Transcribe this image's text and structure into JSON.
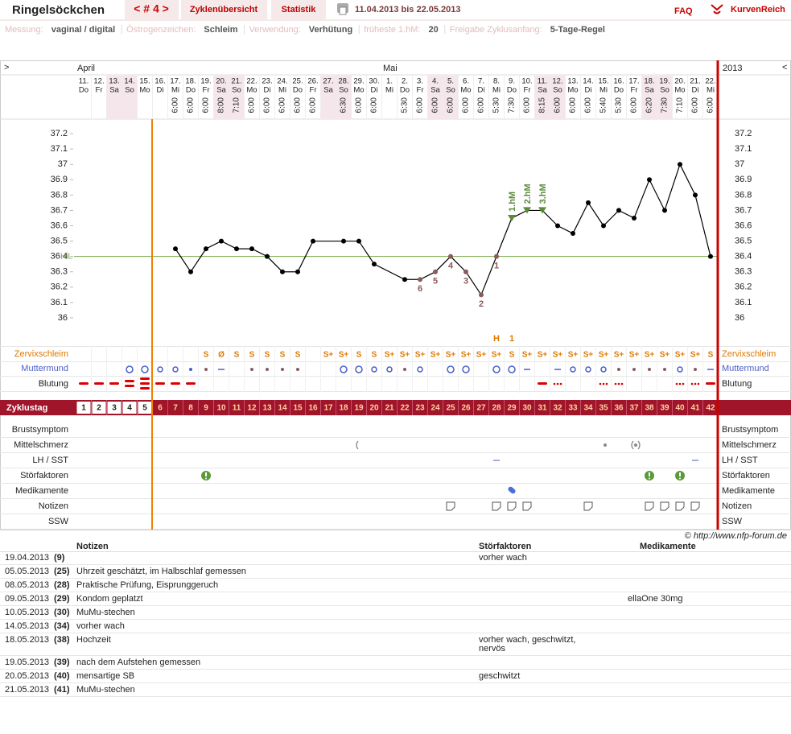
{
  "header": {
    "title": "Ringelsöckchen",
    "cycle_nav": "< # 4 >",
    "tabs": [
      "Zyklenübersicht",
      "Statistik"
    ],
    "date_range": "11.04.2013 bis 22.05.2013",
    "faq": "FAQ",
    "brand": "KurvenReich"
  },
  "settings": [
    {
      "label": "Messung:",
      "value": "vaginal / digital"
    },
    {
      "label": "Östrogenzeichen:",
      "value": "Schleim"
    },
    {
      "label": "Verwendung:",
      "value": "Verhütung"
    },
    {
      "label": "früheste 1.hM:",
      "value": "20"
    },
    {
      "label": "Freigabe Zyklusanfang:",
      "value": "5-Tage-Regel"
    }
  ],
  "calendar": {
    "nav_left": ">",
    "nav_right": "<",
    "year": "2013",
    "months": [
      "April",
      "Mai"
    ],
    "dates": [
      "11.",
      "12.",
      "13.",
      "14.",
      "15.",
      "16.",
      "17.",
      "18.",
      "19.",
      "20.",
      "21.",
      "22.",
      "23.",
      "24.",
      "25.",
      "26.",
      "27.",
      "28.",
      "29.",
      "30.",
      "1.",
      "2.",
      "3.",
      "4.",
      "5.",
      "6.",
      "7.",
      "8.",
      "9.",
      "10.",
      "11.",
      "12.",
      "13.",
      "14.",
      "15.",
      "16.",
      "17.",
      "18.",
      "19.",
      "20.",
      "21.",
      "22."
    ],
    "weekdays": [
      "Do",
      "Fr",
      "Sa",
      "So",
      "Mo",
      "Di",
      "Mi",
      "Do",
      "Fr",
      "Sa",
      "So",
      "Mo",
      "Di",
      "Mi",
      "Do",
      "Fr",
      "Sa",
      "So",
      "Mo",
      "Di",
      "Mi",
      "Do",
      "Fr",
      "Sa",
      "So",
      "Mo",
      "Di",
      "Mi",
      "Do",
      "Fr",
      "Sa",
      "So",
      "Mo",
      "Di",
      "Mi",
      "Do",
      "Fr",
      "Sa",
      "So",
      "Mo",
      "Di",
      "Mi"
    ],
    "times": [
      null,
      null,
      null,
      null,
      null,
      null,
      "6:00",
      "6:00",
      "6:00",
      "8:00",
      "7:10",
      "6:00",
      "6:00",
      "6:00",
      "6:00",
      "6:00",
      null,
      "6:30",
      "6:00",
      "6:00",
      null,
      "5:30",
      "6:00",
      "6:00",
      "6:00",
      "6:00",
      "6:00",
      "5:30",
      "7:30",
      "6:00",
      "8:15",
      "6:00",
      "6:00",
      "6:00",
      "5:40",
      "5:30",
      "6:00",
      "6:20",
      "7:30",
      "7:10",
      "6:00",
      "6:00"
    ]
  },
  "chart_data": {
    "type": "line",
    "color": "#000000",
    "x": [
      7,
      8,
      9,
      10,
      11,
      12,
      13,
      14,
      15,
      16,
      18,
      19,
      20,
      22,
      23,
      24,
      25,
      26,
      27,
      28,
      29,
      30,
      31,
      32,
      33,
      34,
      35,
      36,
      37,
      38,
      39,
      40,
      41,
      42
    ],
    "values": [
      36.45,
      36.3,
      36.45,
      36.5,
      36.45,
      36.45,
      36.4,
      36.3,
      36.3,
      36.5,
      36.5,
      36.5,
      36.35,
      36.25,
      36.25,
      36.3,
      36.4,
      36.3,
      36.15,
      36.4,
      36.65,
      36.7,
      36.7,
      36.6,
      36.55,
      36.75,
      36.6,
      36.7,
      36.65,
      36.9,
      36.7,
      37.0,
      36.8,
      36.4
    ],
    "xlim": [
      1,
      42
    ],
    "ylim": [
      35.9,
      37.3
    ],
    "yticks": [
      36,
      36.1,
      36.2,
      36.3,
      36.4,
      36.5,
      36.6,
      36.7,
      36.8,
      36.9,
      37,
      37.1,
      37.2
    ],
    "coverline": {
      "label": "HiL",
      "value": 36.4
    },
    "low_marks": [
      {
        "x": 23,
        "label": "6"
      },
      {
        "x": 24,
        "label": "5"
      },
      {
        "x": 25,
        "label": "4"
      },
      {
        "x": 26,
        "label": "3"
      },
      {
        "x": 27,
        "label": "2"
      },
      {
        "x": 28,
        "label": "1"
      }
    ],
    "high_marks": [
      {
        "x": 29,
        "label": "1.hM"
      },
      {
        "x": 30,
        "label": "2.hM"
      },
      {
        "x": 31,
        "label": "3.hM"
      }
    ],
    "peak_marks": [
      {
        "x": 28,
        "label": "H"
      },
      {
        "x": 29,
        "label": "1"
      }
    ]
  },
  "rows": {
    "cervix": {
      "label": "Zervixschleim",
      "values": [
        null,
        null,
        null,
        null,
        null,
        null,
        null,
        null,
        "S",
        "Ø",
        "S",
        "S",
        "S",
        "S",
        "S",
        null,
        "S+",
        "S+",
        "S",
        "S",
        "S+",
        "S+",
        "S+",
        "S+",
        "S+",
        "S+",
        "S+",
        "S+",
        "S",
        "S+",
        "S+",
        "S+",
        "S+",
        "S+",
        "S+",
        "S+",
        "S+",
        "S+",
        "S+",
        "S+",
        "S+",
        "S"
      ]
    },
    "muttermund": {
      "label": "Muttermund"
    },
    "blutung": {
      "label": "Blutung"
    }
  },
  "cycle_days": {
    "label": "Zyklustag",
    "values": [
      1,
      2,
      3,
      4,
      5,
      6,
      7,
      8,
      9,
      10,
      11,
      12,
      13,
      14,
      15,
      16,
      17,
      18,
      19,
      20,
      21,
      22,
      23,
      24,
      25,
      26,
      27,
      28,
      29,
      30,
      31,
      32,
      33,
      34,
      35,
      36,
      37,
      38,
      39,
      40,
      41,
      42
    ]
  },
  "symptom_rows": [
    "Brustsymptom",
    "Mittelschmerz",
    "LH / SST",
    "Störfaktoren",
    "Medikamente",
    "Notizen",
    "SSW"
  ],
  "footer": "© http://www.nfp-forum.de",
  "notes": {
    "headers": [
      "Notizen",
      "Störfaktoren",
      "Medikamente"
    ],
    "rows": [
      [
        "19.04.2013",
        "(9)",
        null,
        "vorher wach",
        null
      ],
      [
        "05.05.2013",
        "(25)",
        "Uhrzeit geschätzt, im Halbschlaf gemessen",
        null,
        null
      ],
      [
        "08.05.2013",
        "(28)",
        "Praktische Prüfung, Eisprunggeruch",
        null,
        null
      ],
      [
        "09.05.2013",
        "(29)",
        "Kondom geplatzt",
        null,
        "ellaOne 30mg"
      ],
      [
        "10.05.2013",
        "(30)",
        "MuMu-stechen",
        null,
        null
      ],
      [
        "14.05.2013",
        "(34)",
        "vorher wach",
        null,
        null
      ],
      [
        "18.05.2013",
        "(38)",
        "Hochzeit",
        "vorher wach,  geschwitzt,\nnervös",
        null
      ],
      [
        "19.05.2013",
        "(39)",
        "nach dem Aufstehen gemessen",
        null,
        null
      ],
      [
        "20.05.2013",
        "(40)",
        "mensartige SB",
        "geschwitzt",
        null
      ],
      [
        "21.05.2013",
        "(41)",
        "MuMu-stechen",
        null,
        null
      ]
    ]
  }
}
